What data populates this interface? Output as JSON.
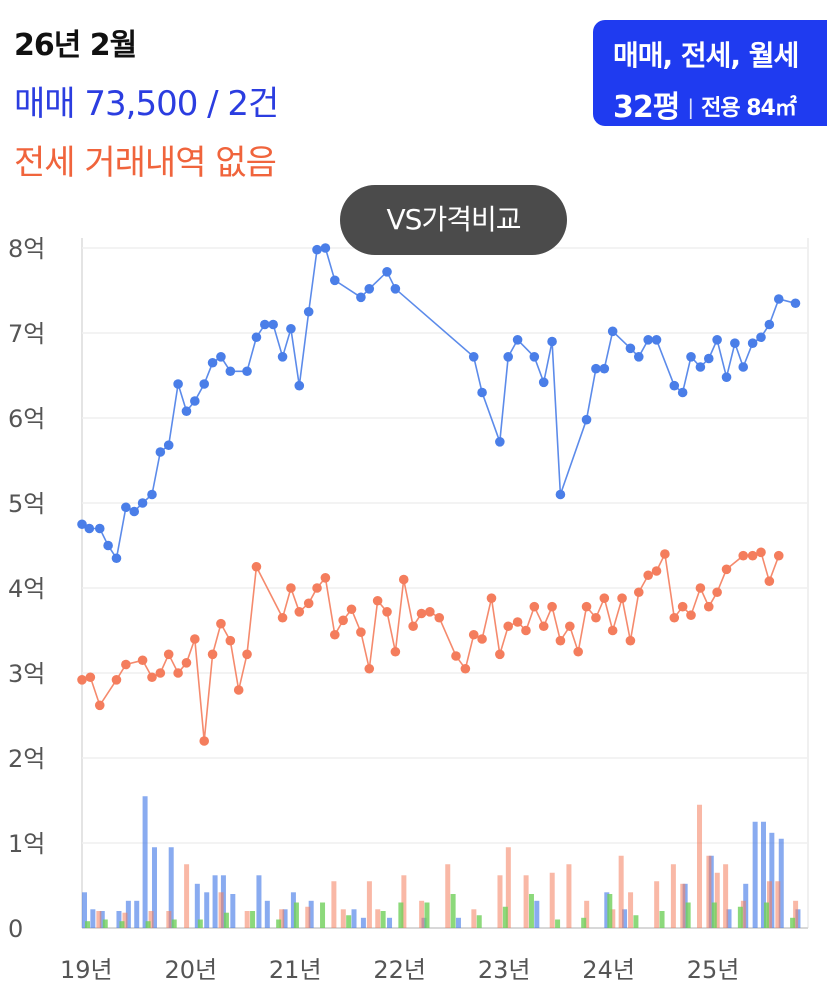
{
  "header": {
    "date": "26년 2월",
    "sale_summary": "매매 73,500 / 2건",
    "jeonse_summary": "전세 거래내역 없음"
  },
  "filter": {
    "types": "매매, 전세, 월세",
    "size": "32평",
    "area": "전용 84㎡"
  },
  "compare_button": "VS가격비교",
  "colors": {
    "sale": "#4a7ee8",
    "jeonse": "#f47d5d",
    "volume_green": "#6fcf5a",
    "filter_bg": "#1f3bf0"
  },
  "chart_data": {
    "type": "line",
    "ylim": [
      0,
      8
    ],
    "y_ticks": [
      "0",
      "1억",
      "2억",
      "3억",
      "4억",
      "5억",
      "6억",
      "7억",
      "8억"
    ],
    "x_ticks": [
      "19년",
      "20년",
      "21년",
      "22년",
      "23년",
      "24년",
      "25년"
    ],
    "xlim": [
      2019.0,
      2025.95
    ],
    "series": [
      {
        "key": "sale",
        "points": [
          [
            2019.0,
            4.75
          ],
          [
            2019.07,
            4.7
          ],
          [
            2019.17,
            4.7
          ],
          [
            2019.25,
            4.5
          ],
          [
            2019.33,
            4.35
          ],
          [
            2019.42,
            4.95
          ],
          [
            2019.5,
            4.9
          ],
          [
            2019.58,
            5.0
          ],
          [
            2019.67,
            5.1
          ],
          [
            2019.75,
            5.6
          ],
          [
            2019.83,
            5.68
          ],
          [
            2019.92,
            6.4
          ],
          [
            2020.0,
            6.08
          ],
          [
            2020.08,
            6.2
          ],
          [
            2020.17,
            6.4
          ],
          [
            2020.25,
            6.65
          ],
          [
            2020.33,
            6.72
          ],
          [
            2020.42,
            6.55
          ],
          [
            2020.58,
            6.55
          ],
          [
            2020.67,
            6.95
          ],
          [
            2020.75,
            7.1
          ],
          [
            2020.83,
            7.1
          ],
          [
            2020.92,
            6.72
          ],
          [
            2021.0,
            7.05
          ],
          [
            2021.08,
            6.38
          ],
          [
            2021.17,
            7.25
          ],
          [
            2021.25,
            7.98
          ],
          [
            2021.33,
            8.0
          ],
          [
            2021.42,
            7.62
          ],
          [
            2021.67,
            7.42
          ],
          [
            2021.75,
            7.52
          ],
          [
            2021.92,
            7.72
          ],
          [
            2022.0,
            7.52
          ],
          [
            2022.75,
            6.72
          ],
          [
            2022.83,
            6.3
          ],
          [
            2023.0,
            5.72
          ],
          [
            2023.08,
            6.72
          ],
          [
            2023.17,
            6.92
          ],
          [
            2023.33,
            6.72
          ],
          [
            2023.42,
            6.42
          ],
          [
            2023.5,
            6.9
          ],
          [
            2023.58,
            5.1
          ],
          [
            2023.83,
            5.98
          ],
          [
            2023.92,
            6.58
          ],
          [
            2024.0,
            6.58
          ],
          [
            2024.08,
            7.02
          ],
          [
            2024.25,
            6.82
          ],
          [
            2024.33,
            6.72
          ],
          [
            2024.42,
            6.92
          ],
          [
            2024.5,
            6.92
          ],
          [
            2024.67,
            6.38
          ],
          [
            2024.75,
            6.3
          ],
          [
            2024.83,
            6.72
          ],
          [
            2024.92,
            6.6
          ],
          [
            2025.0,
            6.7
          ],
          [
            2025.08,
            6.92
          ],
          [
            2025.17,
            6.48
          ],
          [
            2025.25,
            6.88
          ],
          [
            2025.33,
            6.6
          ],
          [
            2025.42,
            6.88
          ],
          [
            2025.5,
            6.95
          ],
          [
            2025.58,
            7.1
          ],
          [
            2025.67,
            7.4
          ],
          [
            2025.83,
            7.35
          ]
        ]
      },
      {
        "key": "jeonse",
        "points": [
          [
            2019.0,
            2.92
          ],
          [
            2019.08,
            2.95
          ],
          [
            2019.17,
            2.62
          ],
          [
            2019.33,
            2.92
          ],
          [
            2019.42,
            3.1
          ],
          [
            2019.58,
            3.15
          ],
          [
            2019.67,
            2.95
          ],
          [
            2019.75,
            3.0
          ],
          [
            2019.83,
            3.22
          ],
          [
            2019.92,
            3.0
          ],
          [
            2020.0,
            3.12
          ],
          [
            2020.08,
            3.4
          ],
          [
            2020.17,
            2.2
          ],
          [
            2020.25,
            3.22
          ],
          [
            2020.33,
            3.58
          ],
          [
            2020.42,
            3.38
          ],
          [
            2020.5,
            2.8
          ],
          [
            2020.58,
            3.22
          ],
          [
            2020.67,
            4.25
          ],
          [
            2020.92,
            3.65
          ],
          [
            2021.0,
            4.0
          ],
          [
            2021.08,
            3.72
          ],
          [
            2021.17,
            3.82
          ],
          [
            2021.25,
            4.0
          ],
          [
            2021.33,
            4.12
          ],
          [
            2021.42,
            3.45
          ],
          [
            2021.5,
            3.62
          ],
          [
            2021.58,
            3.75
          ],
          [
            2021.67,
            3.48
          ],
          [
            2021.75,
            3.05
          ],
          [
            2021.83,
            3.85
          ],
          [
            2021.92,
            3.72
          ],
          [
            2022.0,
            3.25
          ],
          [
            2022.08,
            4.1
          ],
          [
            2022.17,
            3.55
          ],
          [
            2022.25,
            3.7
          ],
          [
            2022.33,
            3.72
          ],
          [
            2022.42,
            3.65
          ],
          [
            2022.58,
            3.2
          ],
          [
            2022.67,
            3.05
          ],
          [
            2022.75,
            3.45
          ],
          [
            2022.83,
            3.4
          ],
          [
            2022.92,
            3.88
          ],
          [
            2023.0,
            3.22
          ],
          [
            2023.08,
            3.55
          ],
          [
            2023.17,
            3.6
          ],
          [
            2023.25,
            3.5
          ],
          [
            2023.33,
            3.78
          ],
          [
            2023.42,
            3.55
          ],
          [
            2023.5,
            3.78
          ],
          [
            2023.58,
            3.38
          ],
          [
            2023.67,
            3.55
          ],
          [
            2023.75,
            3.25
          ],
          [
            2023.83,
            3.78
          ],
          [
            2023.92,
            3.65
          ],
          [
            2024.0,
            3.88
          ],
          [
            2024.08,
            3.5
          ],
          [
            2024.17,
            3.88
          ],
          [
            2024.25,
            3.38
          ],
          [
            2024.33,
            3.95
          ],
          [
            2024.42,
            4.15
          ],
          [
            2024.5,
            4.2
          ],
          [
            2024.58,
            4.4
          ],
          [
            2024.67,
            3.65
          ],
          [
            2024.75,
            3.78
          ],
          [
            2024.83,
            3.68
          ],
          [
            2024.92,
            4.0
          ],
          [
            2025.0,
            3.78
          ],
          [
            2025.08,
            3.95
          ],
          [
            2025.17,
            4.22
          ],
          [
            2025.33,
            4.38
          ],
          [
            2025.42,
            4.38
          ],
          [
            2025.5,
            4.42
          ],
          [
            2025.58,
            4.08
          ],
          [
            2025.67,
            4.38
          ]
        ]
      }
    ],
    "volume_bars": {
      "sale": [
        [
          2019.0,
          0.42
        ],
        [
          2019.08,
          0.22
        ],
        [
          2019.17,
          0.2
        ],
        [
          2019.33,
          0.2
        ],
        [
          2019.42,
          0.32
        ],
        [
          2019.5,
          0.32
        ],
        [
          2019.58,
          1.55
        ],
        [
          2019.67,
          0.95
        ],
        [
          2019.83,
          0.95
        ],
        [
          2020.08,
          0.52
        ],
        [
          2020.17,
          0.42
        ],
        [
          2020.25,
          0.62
        ],
        [
          2020.33,
          0.62
        ],
        [
          2020.42,
          0.4
        ],
        [
          2020.67,
          0.62
        ],
        [
          2020.75,
          0.32
        ],
        [
          2020.92,
          0.22
        ],
        [
          2021.0,
          0.42
        ],
        [
          2021.17,
          0.32
        ],
        [
          2021.58,
          0.22
        ],
        [
          2021.67,
          0.12
        ],
        [
          2021.92,
          0.12
        ],
        [
          2022.25,
          0.12
        ],
        [
          2022.58,
          0.12
        ],
        [
          2023.33,
          0.32
        ],
        [
          2024.0,
          0.42
        ],
        [
          2024.17,
          0.22
        ],
        [
          2024.75,
          0.52
        ],
        [
          2025.0,
          0.85
        ],
        [
          2025.17,
          0.22
        ],
        [
          2025.33,
          0.52
        ],
        [
          2025.42,
          1.25
        ],
        [
          2025.5,
          1.25
        ],
        [
          2025.58,
          1.12
        ],
        [
          2025.67,
          1.05
        ],
        [
          2025.83,
          0.22
        ]
      ],
      "jeonse": [
        [
          2019.08,
          0.2
        ],
        [
          2019.33,
          0.18
        ],
        [
          2019.58,
          0.2
        ],
        [
          2019.75,
          0.2
        ],
        [
          2019.92,
          0.75
        ],
        [
          2020.25,
          0.42
        ],
        [
          2020.5,
          0.2
        ],
        [
          2020.83,
          0.22
        ],
        [
          2021.08,
          0.25
        ],
        [
          2021.33,
          0.55
        ],
        [
          2021.42,
          0.22
        ],
        [
          2021.67,
          0.55
        ],
        [
          2021.75,
          0.22
        ],
        [
          2022.0,
          0.62
        ],
        [
          2022.17,
          0.32
        ],
        [
          2022.42,
          0.75
        ],
        [
          2022.67,
          0.22
        ],
        [
          2022.92,
          0.62
        ],
        [
          2023.0,
          0.95
        ],
        [
          2023.17,
          0.62
        ],
        [
          2023.42,
          0.65
        ],
        [
          2023.58,
          0.75
        ],
        [
          2023.75,
          0.32
        ],
        [
          2024.0,
          0.22
        ],
        [
          2024.08,
          0.85
        ],
        [
          2024.17,
          0.42
        ],
        [
          2024.42,
          0.55
        ],
        [
          2024.58,
          0.75
        ],
        [
          2024.67,
          0.52
        ],
        [
          2024.83,
          1.45
        ],
        [
          2024.92,
          0.85
        ],
        [
          2025.0,
          0.65
        ],
        [
          2025.08,
          0.75
        ],
        [
          2025.25,
          0.32
        ],
        [
          2025.5,
          0.55
        ],
        [
          2025.58,
          0.55
        ],
        [
          2025.75,
          0.32
        ]
      ],
      "green": [
        [
          2019.0,
          0.08
        ],
        [
          2019.17,
          0.1
        ],
        [
          2019.33,
          0.08
        ],
        [
          2019.58,
          0.08
        ],
        [
          2019.83,
          0.1
        ],
        [
          2020.08,
          0.1
        ],
        [
          2020.33,
          0.18
        ],
        [
          2020.58,
          0.2
        ],
        [
          2020.83,
          0.1
        ],
        [
          2021.0,
          0.3
        ],
        [
          2021.25,
          0.3
        ],
        [
          2021.5,
          0.15
        ],
        [
          2021.83,
          0.2
        ],
        [
          2022.0,
          0.3
        ],
        [
          2022.25,
          0.3
        ],
        [
          2022.5,
          0.4
        ],
        [
          2022.75,
          0.15
        ],
        [
          2023.0,
          0.25
        ],
        [
          2023.25,
          0.4
        ],
        [
          2023.5,
          0.1
        ],
        [
          2023.75,
          0.12
        ],
        [
          2024.0,
          0.4
        ],
        [
          2024.25,
          0.15
        ],
        [
          2024.5,
          0.2
        ],
        [
          2024.75,
          0.3
        ],
        [
          2025.0,
          0.3
        ],
        [
          2025.25,
          0.25
        ],
        [
          2025.5,
          0.3
        ],
        [
          2025.75,
          0.12
        ]
      ]
    }
  }
}
